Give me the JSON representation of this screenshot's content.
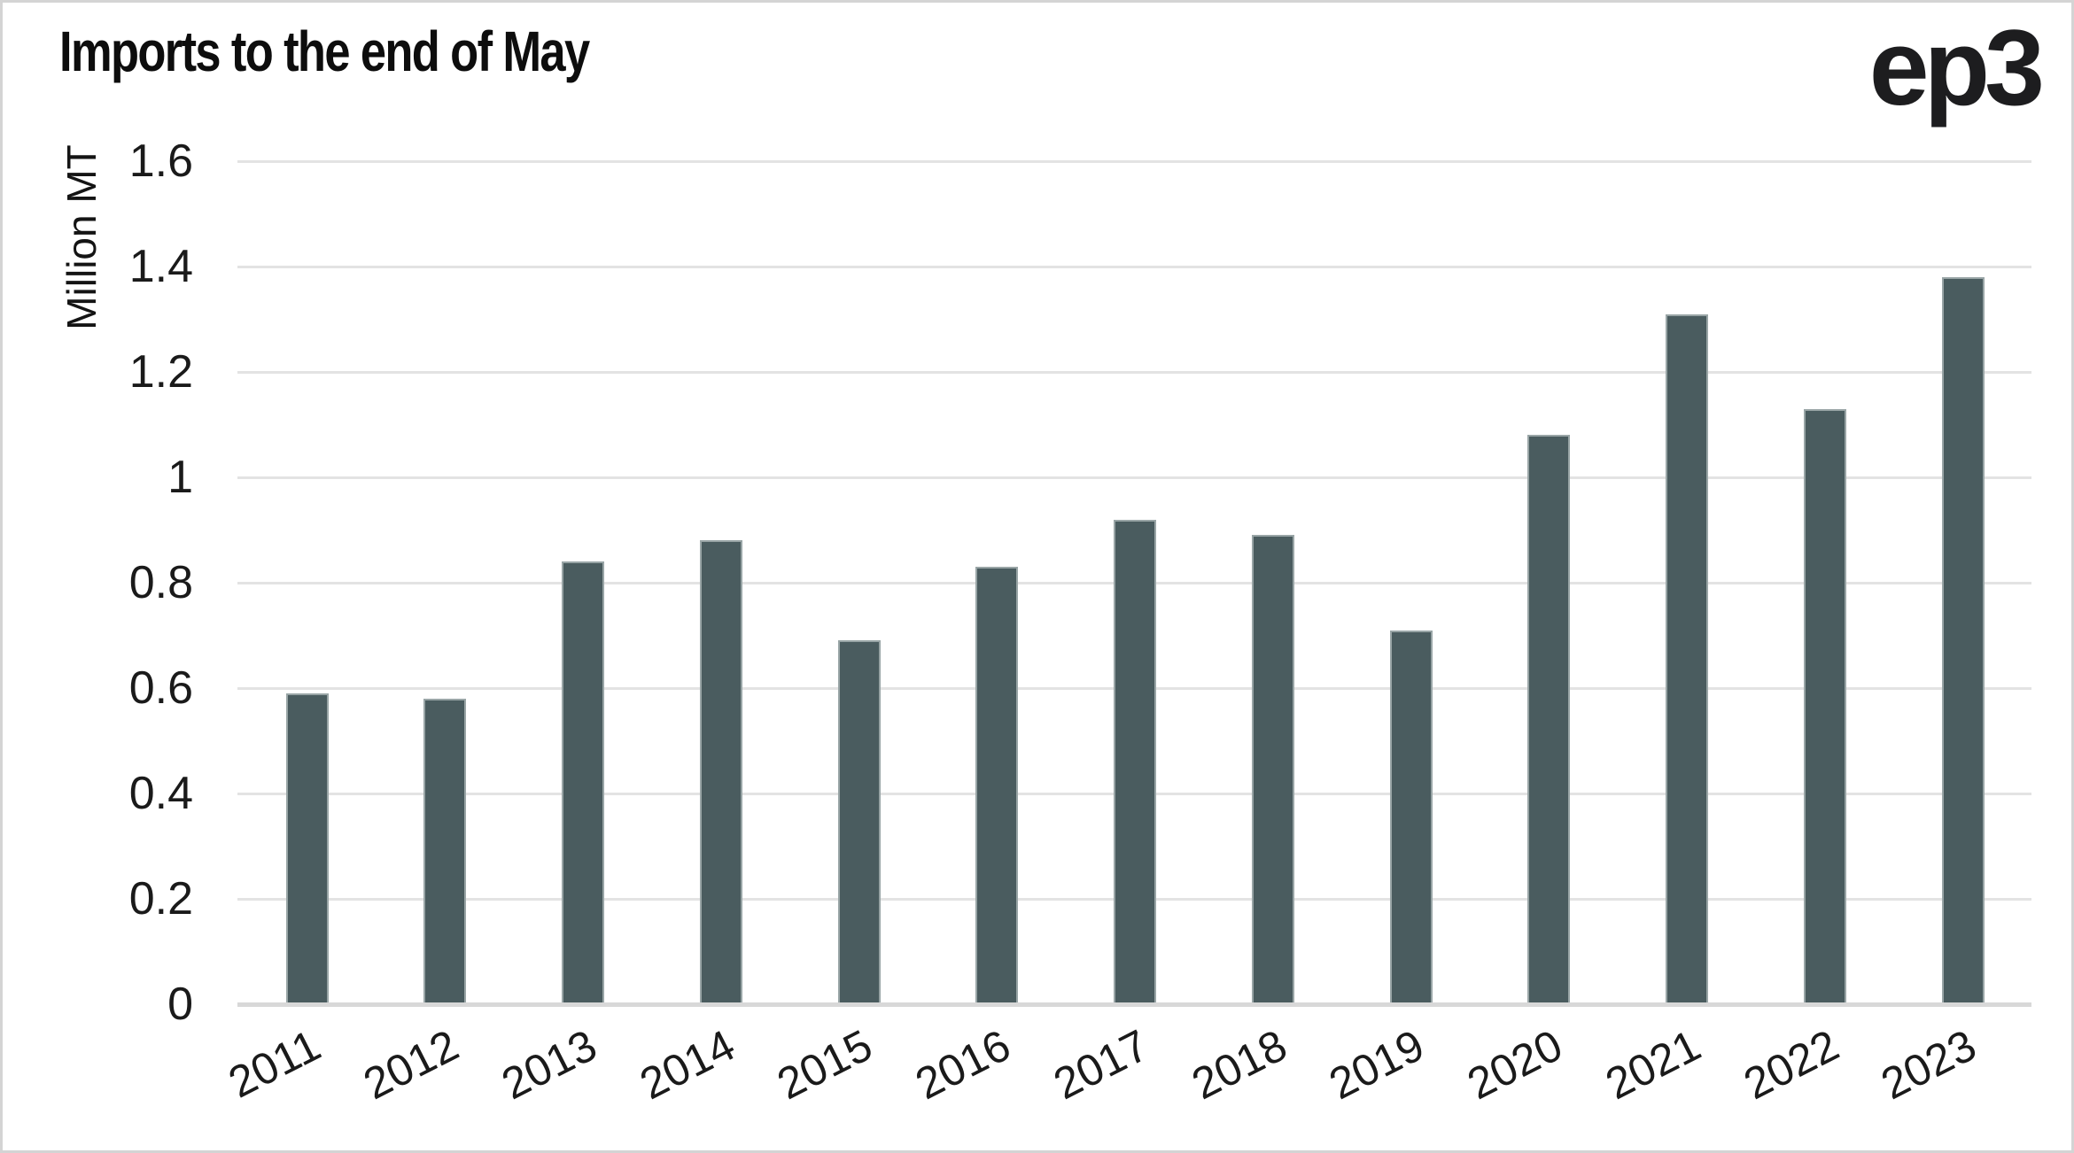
{
  "header": {
    "title": "Imports to the end of May",
    "logo": "ep3"
  },
  "chart_data": {
    "type": "bar",
    "title": "Imports to the end of May",
    "categories": [
      "2011",
      "2012",
      "2013",
      "2014",
      "2015",
      "2016",
      "2017",
      "2018",
      "2019",
      "2020",
      "2021",
      "2022",
      "2023"
    ],
    "values": [
      0.59,
      0.58,
      0.84,
      0.88,
      0.69,
      0.83,
      0.92,
      0.89,
      0.71,
      1.08,
      1.31,
      1.13,
      1.38
    ],
    "xlabel": "",
    "ylabel": "Million MT",
    "ylim": [
      0,
      1.6
    ],
    "yticks": [
      "0",
      "0.2",
      "0.4",
      "0.6",
      "0.8",
      "1",
      "1.2",
      "1.4",
      "1.6"
    ],
    "grid": true,
    "legend": false,
    "x_tick_rotation_deg": -27,
    "bar_color": "#4a5c5f",
    "bar_border_color": "#99a5a6",
    "gridline_color": "#e3e3e3",
    "axis_line_color": "#d8d8d8"
  },
  "colors": {
    "background": "#ffffff",
    "frame_border": "#d4d4d4",
    "text": "#111111"
  }
}
